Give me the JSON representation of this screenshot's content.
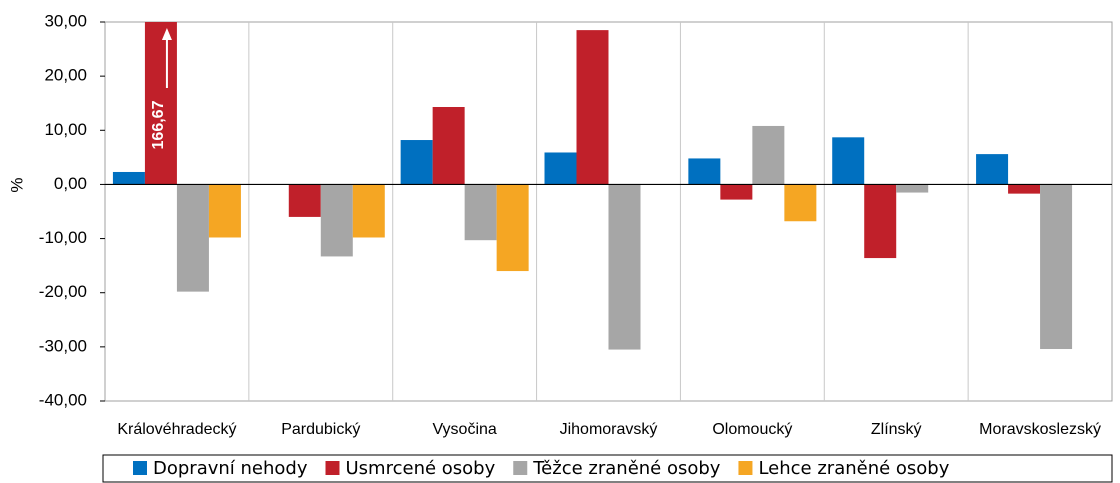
{
  "chart_data": {
    "type": "bar",
    "y_label": "%",
    "categories": [
      "Královéhradecký",
      "Pardubický",
      "Vysočina",
      "Jihomoravský",
      "Olomoucký",
      "Zlínský",
      "Moravskoslezský"
    ],
    "series": [
      {
        "name": "Dopravní nehody",
        "color": "#0070c0",
        "values": [
          2.3,
          null,
          8.2,
          5.9,
          4.8,
          8.7,
          5.6
        ]
      },
      {
        "name": "Usmrcené osoby",
        "color": "#c0202a",
        "values": [
          166.67,
          -6.0,
          14.3,
          28.5,
          -2.8,
          -13.6,
          -1.7
        ],
        "value_labels": [
          "166,67",
          null,
          null,
          null,
          null,
          null,
          null
        ]
      },
      {
        "name": "Těžce zraněné osoby",
        "color": "#a6a6a6",
        "values": [
          -19.8,
          -13.3,
          -10.3,
          -30.5,
          10.8,
          -1.5,
          -30.4
        ]
      },
      {
        "name": "Lehce zraněné osoby",
        "color": "#f5a623",
        "values": [
          -9.8,
          -9.8,
          -16.0,
          null,
          -6.8,
          null,
          null
        ]
      }
    ],
    "ylim": [
      -40,
      30
    ],
    "yticks": [
      {
        "value": -40,
        "label": "-40,00"
      },
      {
        "value": -30,
        "label": "-30,00"
      },
      {
        "value": -20,
        "label": "-20,00"
      },
      {
        "value": -10,
        "label": "-10,00"
      },
      {
        "value": 0,
        "label": "0,00"
      },
      {
        "value": 10,
        "label": "10,00"
      },
      {
        "value": 20,
        "label": "20,00"
      },
      {
        "value": 30,
        "label": "30,00"
      }
    ],
    "legend": "bottom"
  }
}
